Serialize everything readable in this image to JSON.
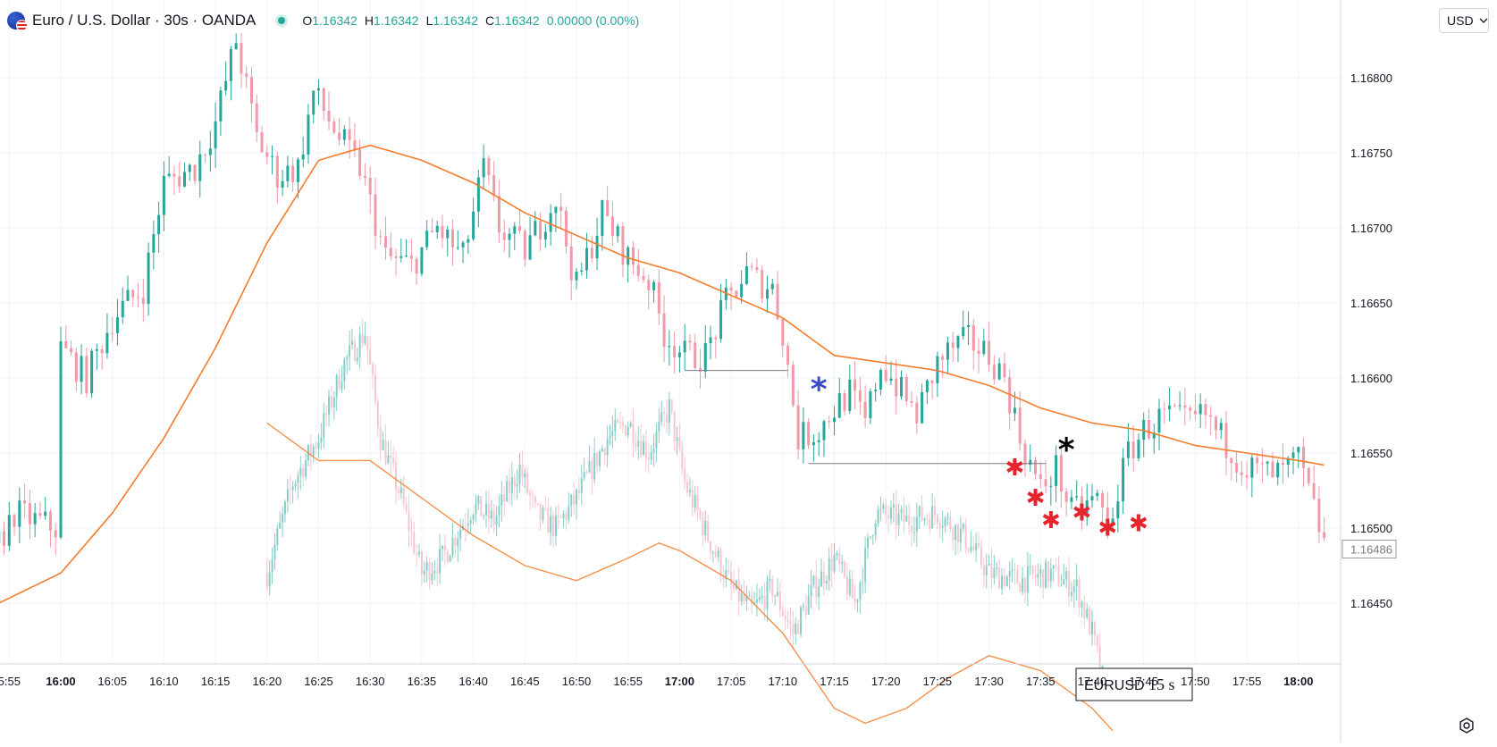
{
  "header": {
    "title": "Euro / U.S. Dollar · 30s · OANDA",
    "icon": "eur-usd-flag-icon",
    "ohlc": {
      "o_label": "O",
      "o_value": "1.16342",
      "h_label": "H",
      "h_value": "1.16342",
      "l_label": "L",
      "l_value": "1.16342",
      "c_label": "C",
      "c_value": "1.16342",
      "change": "0.00000 (0.00%)"
    }
  },
  "currency_button": {
    "label": "USD"
  },
  "watermark_box": {
    "symbol": "EURUSD",
    "interval": "15 s"
  },
  "colors": {
    "up": "#26a69a",
    "down": "#ef9aa8",
    "ma": "#f57c2b",
    "grid": "#f0f3fa",
    "axis_text": "#131722",
    "annotation_blue": "#3d4bc4",
    "annotation_red": "#e5242c",
    "price_marker": "#9598a1"
  },
  "chart_data": [
    {
      "type": "candlestick",
      "panel": "main 30s chart",
      "x_tick_labels": [
        "5:55",
        "16:00",
        "16:05",
        "16:10",
        "16:15",
        "16:20",
        "16:25",
        "16:30",
        "16:35",
        "16:40",
        "16:45",
        "16:50",
        "16:55",
        "17:00",
        "17:05",
        "17:10",
        "17:15",
        "17:20",
        "17:25",
        "17:30",
        "17:35",
        "17:40",
        "17:45",
        "17:50",
        "17:55",
        "18:00"
      ],
      "bold_x_ticks": [
        "16:00",
        "17:00",
        "18:00"
      ],
      "y_tick_labels": [
        "1.16800",
        "1.16750",
        "1.16700",
        "1.16650",
        "1.16600",
        "1.16550",
        "1.16500",
        "1.16450"
      ],
      "ylim": [
        1.16414,
        1.1686
      ],
      "last_price": "1.16486",
      "anchors": [
        [
          "15:54:00",
          1.1649
        ],
        [
          "15:55:30",
          1.1651
        ],
        [
          "15:59:30",
          1.165
        ],
        [
          "16:00:00",
          1.1662
        ],
        [
          "16:02:30",
          1.166
        ],
        [
          "16:05:00",
          1.1664
        ],
        [
          "16:08:00",
          1.1666
        ],
        [
          "16:10:00",
          1.1673
        ],
        [
          "16:13:00",
          1.1674
        ],
        [
          "16:15:00",
          1.1677
        ],
        [
          "16:17:00",
          1.16825
        ],
        [
          "16:19:00",
          1.1676
        ],
        [
          "16:21:00",
          1.16735
        ],
        [
          "16:23:00",
          1.1674
        ],
        [
          "16:24:30",
          1.1679
        ],
        [
          "16:27:00",
          1.1676
        ],
        [
          "16:29:00",
          1.1674
        ],
        [
          "16:31:30",
          1.1668
        ],
        [
          "16:34:00",
          1.16675
        ],
        [
          "16:36:30",
          1.167
        ],
        [
          "16:39:00",
          1.1668
        ],
        [
          "16:41:00",
          1.1674
        ],
        [
          "16:42:30",
          1.167
        ],
        [
          "16:45:00",
          1.16685
        ],
        [
          "16:48:00",
          1.1672
        ],
        [
          "16:50:00",
          1.1666
        ],
        [
          "16:52:30",
          1.1671
        ],
        [
          "16:55:00",
          1.1668
        ],
        [
          "16:57:00",
          1.16665
        ],
        [
          "16:58:30",
          1.1663
        ],
        [
          "17:00:30",
          1.16615
        ],
        [
          "17:02:30",
          1.16615
        ],
        [
          "17:04:30",
          1.1665
        ],
        [
          "17:06:30",
          1.1667
        ],
        [
          "17:07:30",
          1.16665
        ],
        [
          "17:09:00",
          1.1666
        ],
        [
          "17:10:00",
          1.1663
        ],
        [
          "17:11:30",
          1.1656
        ],
        [
          "17:13:30",
          1.16565
        ],
        [
          "17:15:00",
          1.1658
        ],
        [
          "17:16:30",
          1.1659
        ],
        [
          "17:18:00",
          1.1657
        ],
        [
          "17:19:30",
          1.1661
        ],
        [
          "17:21:30",
          1.1659
        ],
        [
          "17:23:00",
          1.16575
        ],
        [
          "17:25:00",
          1.1661
        ],
        [
          "17:26:30",
          1.1662
        ],
        [
          "17:28:00",
          1.16625
        ],
        [
          "17:30:00",
          1.16615
        ],
        [
          "17:31:30",
          1.166
        ],
        [
          "17:33:00",
          1.1656
        ],
        [
          "17:35:00",
          1.16525
        ],
        [
          "17:36:30",
          1.1654
        ],
        [
          "17:38:00",
          1.1651
        ],
        [
          "17:40:30",
          1.1652
        ],
        [
          "17:41:30",
          1.165
        ],
        [
          "17:43:30",
          1.1655
        ],
        [
          "17:45:00",
          1.16565
        ],
        [
          "17:47:00",
          1.16575
        ],
        [
          "17:49:00",
          1.1657
        ],
        [
          "17:51:00",
          1.16575
        ],
        [
          "17:52:30",
          1.1656
        ],
        [
          "17:55:00",
          1.1654
        ],
        [
          "17:58:00",
          1.16535
        ],
        [
          "18:00:00",
          1.16545
        ],
        [
          "18:02:30",
          1.1649
        ]
      ],
      "moving_average_anchors": [
        [
          "15:54:00",
          1.1645
        ],
        [
          "16:00:00",
          1.1647
        ],
        [
          "16:05:00",
          1.1651
        ],
        [
          "16:10:00",
          1.1656
        ],
        [
          "16:15:00",
          1.1662
        ],
        [
          "16:20:00",
          1.1669
        ],
        [
          "16:25:00",
          1.16745
        ],
        [
          "16:30:00",
          1.16755
        ],
        [
          "16:35:00",
          1.16745
        ],
        [
          "16:40:00",
          1.1673
        ],
        [
          "16:45:00",
          1.1671
        ],
        [
          "16:50:00",
          1.16695
        ],
        [
          "16:55:00",
          1.1668
        ],
        [
          "17:00:00",
          1.1667
        ],
        [
          "17:05:00",
          1.16655
        ],
        [
          "17:10:00",
          1.1664
        ],
        [
          "17:15:00",
          1.16615
        ],
        [
          "17:20:00",
          1.1661
        ],
        [
          "17:25:00",
          1.16605
        ],
        [
          "17:30:00",
          1.16595
        ],
        [
          "17:35:00",
          1.1658
        ],
        [
          "17:40:00",
          1.1657
        ],
        [
          "17:45:00",
          1.16565
        ],
        [
          "17:50:00",
          1.16555
        ],
        [
          "17:55:00",
          1.1655
        ],
        [
          "18:00:00",
          1.16545
        ],
        [
          "18:02:30",
          1.16542
        ]
      ],
      "horizontal_lines": [
        {
          "from": "17:00:30",
          "to": "17:10:30",
          "price": 1.16605
        },
        {
          "from": "17:12:30",
          "to": "17:35:30",
          "price": 1.16543
        }
      ],
      "annotations": [
        {
          "glyph": "*",
          "color": "blue",
          "time": "17:13:30",
          "price": 1.16585
        },
        {
          "glyph": "*",
          "color": "black",
          "time": "17:37:30",
          "price": 1.16545
        },
        {
          "glyph": "✱",
          "color": "red",
          "time": "17:32:30",
          "price": 1.16535
        },
        {
          "glyph": "✱",
          "color": "red",
          "time": "17:34:30",
          "price": 1.16515
        },
        {
          "glyph": "✱",
          "color": "red",
          "time": "17:36:00",
          "price": 1.165
        },
        {
          "glyph": "✱",
          "color": "red",
          "time": "17:39:00",
          "price": 1.16505
        },
        {
          "glyph": "✱",
          "color": "red",
          "time": "17:41:30",
          "price": 1.16495
        },
        {
          "glyph": "✱",
          "color": "red",
          "time": "17:44:30",
          "price": 1.16498
        }
      ]
    },
    {
      "type": "candlestick",
      "panel": "overlaid 15s chart (semi-transparent)",
      "anchors": [
        [
          "16:20:00",
          1.1647
        ],
        [
          "16:22:30",
          1.1653
        ],
        [
          "16:25:00",
          1.1656
        ],
        [
          "16:27:30",
          1.1661
        ],
        [
          "16:29:30",
          1.1663
        ],
        [
          "16:31:00",
          1.1656
        ],
        [
          "16:33:00",
          1.1652
        ],
        [
          "16:35:00",
          1.1647
        ],
        [
          "16:37:00",
          1.1648
        ],
        [
          "16:40:00",
          1.16515
        ],
        [
          "16:42:00",
          1.16505
        ],
        [
          "16:44:30",
          1.1654
        ],
        [
          "16:46:00",
          1.1651
        ],
        [
          "16:48:00",
          1.165
        ],
        [
          "16:50:00",
          1.1652
        ],
        [
          "16:53:00",
          1.1656
        ],
        [
          "16:55:00",
          1.1657
        ],
        [
          "16:57:00",
          1.1655
        ],
        [
          "16:59:00",
          1.1658
        ],
        [
          "17:00:30",
          1.1653
        ],
        [
          "17:03:00",
          1.1649
        ],
        [
          "17:05:00",
          1.1646
        ],
        [
          "17:07:00",
          1.16445
        ],
        [
          "17:09:00",
          1.1646
        ],
        [
          "17:11:00",
          1.1643
        ],
        [
          "17:13:00",
          1.1646
        ],
        [
          "17:15:00",
          1.1648
        ],
        [
          "17:17:00",
          1.1645
        ],
        [
          "17:19:00",
          1.1651
        ],
        [
          "17:22:00",
          1.16505
        ],
        [
          "17:25:00",
          1.1651
        ],
        [
          "17:27:30",
          1.16495
        ],
        [
          "17:30:00",
          1.1647
        ],
        [
          "17:33:00",
          1.16465
        ],
        [
          "17:36:00",
          1.1647
        ],
        [
          "17:38:30",
          1.1646
        ],
        [
          "17:40:00",
          1.1643
        ],
        [
          "17:41:00",
          1.164
        ]
      ],
      "moving_average_anchors": [
        [
          "16:20:00",
          1.1657
        ],
        [
          "16:25:00",
          1.16545
        ],
        [
          "16:30:00",
          1.16545
        ],
        [
          "16:35:00",
          1.1652
        ],
        [
          "16:40:00",
          1.16495
        ],
        [
          "16:45:00",
          1.16475
        ],
        [
          "16:50:00",
          1.16465
        ],
        [
          "16:55:00",
          1.1648
        ],
        [
          "16:58:00",
          1.1649
        ],
        [
          "17:00:00",
          1.16485
        ],
        [
          "17:05:00",
          1.16465
        ],
        [
          "17:10:00",
          1.1643
        ],
        [
          "17:15:00",
          1.1638
        ],
        [
          "17:18:00",
          1.1637
        ],
        [
          "17:22:00",
          1.1638
        ],
        [
          "17:26:00",
          1.164
        ],
        [
          "17:30:00",
          1.16415
        ],
        [
          "17:35:00",
          1.16405
        ],
        [
          "17:40:00",
          1.1638
        ],
        [
          "17:42:00",
          1.16365
        ]
      ]
    }
  ]
}
